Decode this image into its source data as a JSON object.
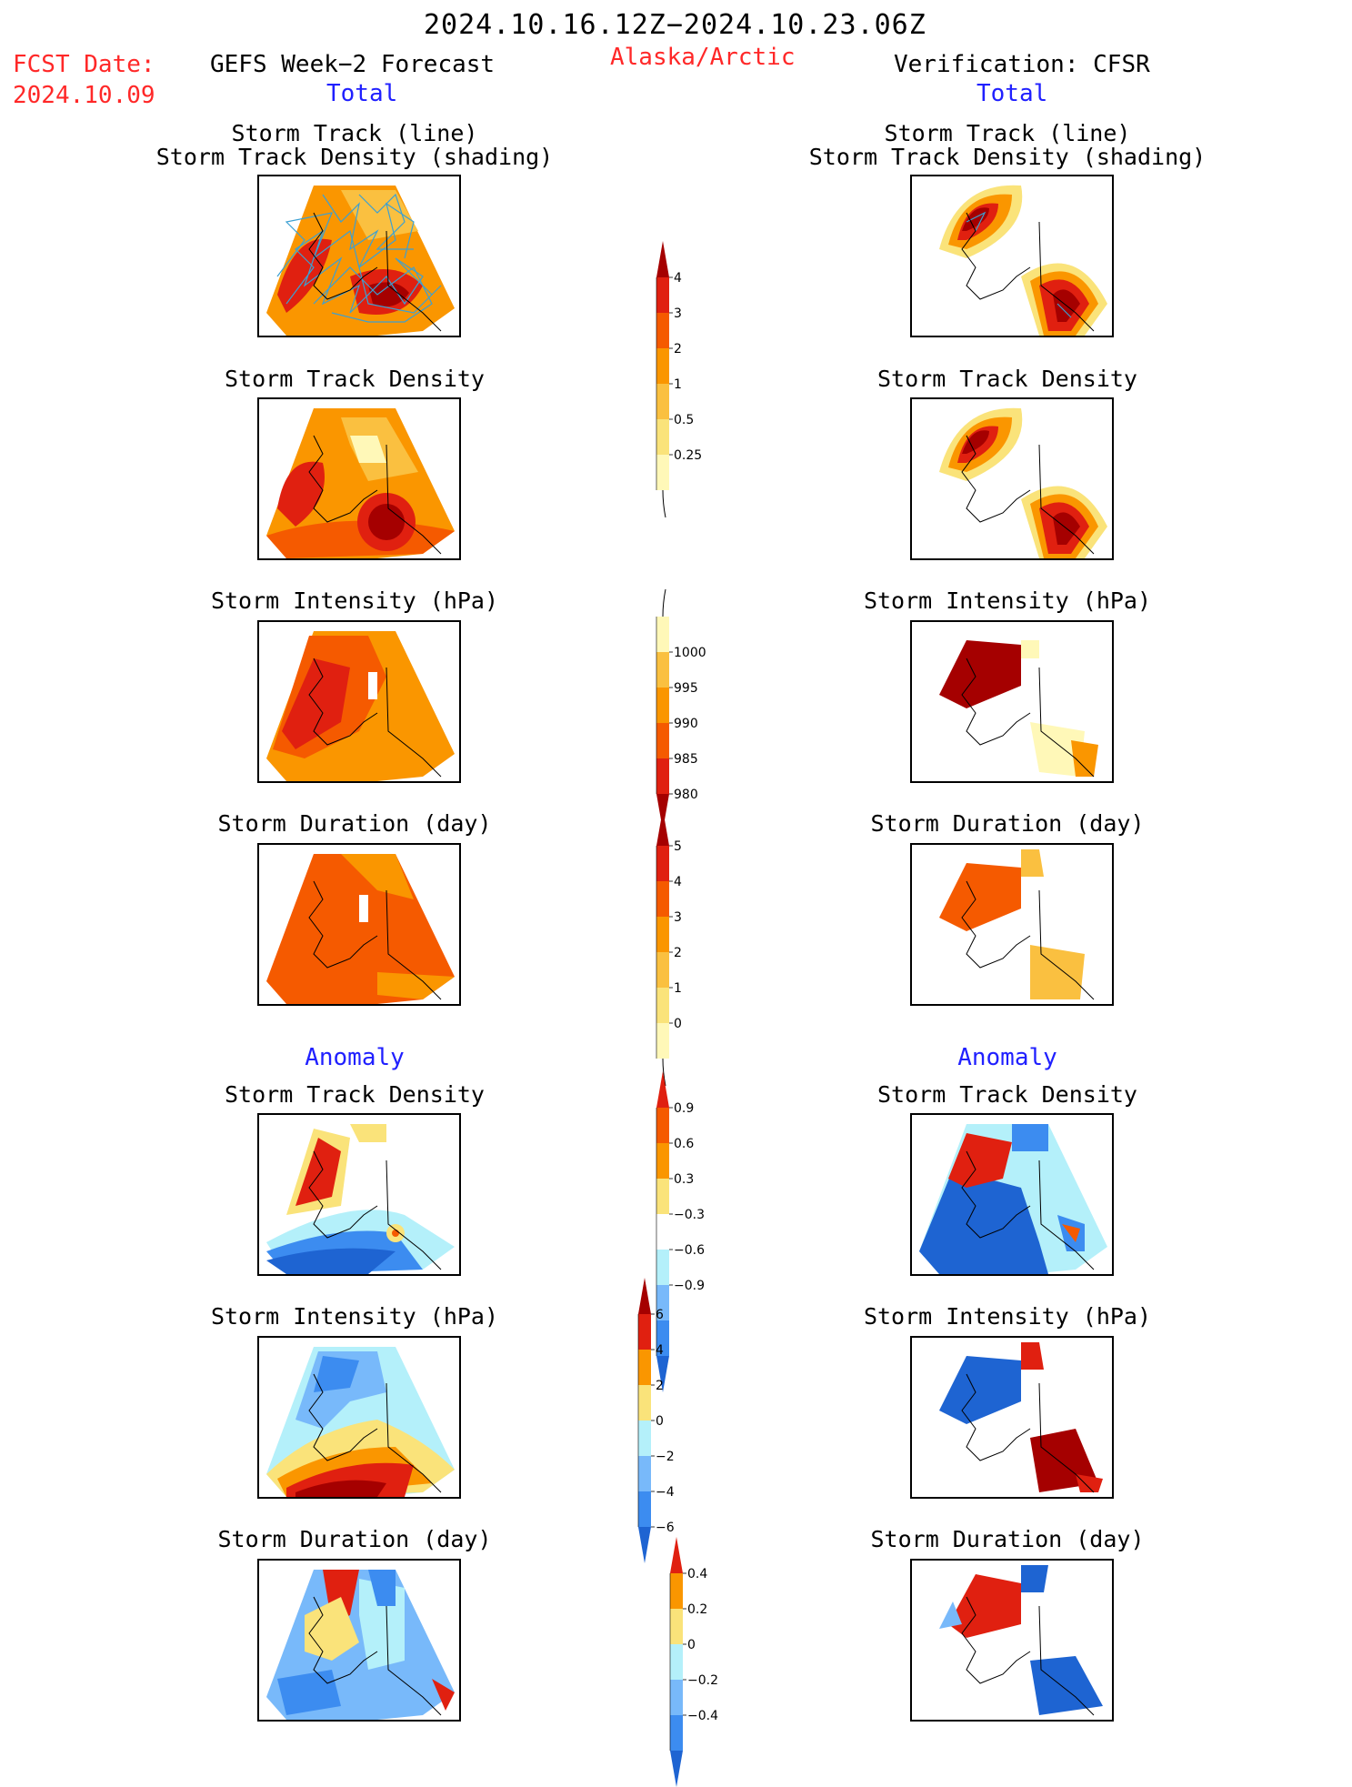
{
  "header": {
    "date_range": "2024.10.16.12Z−2024.10.23.06Z",
    "fcst_label": "FCST Date:",
    "fcst_date": "2024.10.09",
    "left_title": "GEFS Week−2 Forecast",
    "center_title": "Alaska/Arctic",
    "right_title": "Verification: CFSR",
    "left_section_total": "Total",
    "right_section_total": "Total",
    "left_section_anomaly": "Anomaly",
    "right_section_anomaly": "Anomaly"
  },
  "panel_titles": {
    "track_line": "Storm Track (line)",
    "track_shading": "Storm Track Density (shading)",
    "density": "Storm Track Density",
    "intensity": "Storm Intensity (hPa)",
    "duration": "Storm Duration (day)"
  },
  "colors": {
    "dark_red": "#a50000",
    "red": "#e02010",
    "orange_red": "#f55a00",
    "orange": "#fa9600",
    "light_orange": "#fac040",
    "yellow": "#fae37a",
    "pale_yellow": "#fff8b8",
    "pale_blue": "#b4f0fa",
    "light_blue": "#78b9fa",
    "mid_blue": "#3c8cf0",
    "blue": "#1e64d2",
    "track_line": "#3ca0d2"
  },
  "colorbars": {
    "density_total": {
      "labels": [
        "4",
        "3",
        "2",
        "1",
        "0.5",
        "0.25"
      ],
      "colors": [
        "#a50000",
        "#e02010",
        "#f55a00",
        "#fa9600",
        "#fac040",
        "#fae37a",
        "#fff8b8"
      ]
    },
    "intensity_total": {
      "labels": [
        "1000",
        "995",
        "990",
        "985",
        "980"
      ],
      "colors": [
        "#fff8b8",
        "#fac040",
        "#fa9600",
        "#f55a00",
        "#e02010",
        "#a50000"
      ]
    },
    "duration_total": {
      "labels": [
        "5",
        "4",
        "3",
        "2",
        "1",
        "0"
      ],
      "colors": [
        "#a50000",
        "#e02010",
        "#f55a00",
        "#fa9600",
        "#fac040",
        "#fae37a",
        "#fff8b8"
      ]
    },
    "density_anom": {
      "labels": [
        "0.9",
        "0.6",
        "0.3",
        "−0.3",
        "−0.6",
        "−0.9"
      ],
      "colors": [
        "#e02010",
        "#f55a00",
        "#fa9600",
        "#fae37a",
        "#ffffff",
        "#b4f0fa",
        "#78b9fa",
        "#3c8cf0",
        "#1e64d2"
      ]
    },
    "intensity_anom": {
      "labels": [
        "6",
        "4",
        "2",
        "0",
        "−2",
        "−4",
        "−6"
      ],
      "colors": [
        "#a50000",
        "#e02010",
        "#fa9600",
        "#fae37a",
        "#b4f0fa",
        "#78b9fa",
        "#3c8cf0",
        "#1e64d2"
      ]
    },
    "duration_anom": {
      "labels": [
        "0.4",
        "0.2",
        "0",
        "−0.2",
        "−0.4"
      ],
      "colors": [
        "#e02010",
        "#fa9600",
        "#fae37a",
        "#b4f0fa",
        "#78b9fa",
        "#3c8cf0",
        "#1e64d2"
      ]
    }
  }
}
